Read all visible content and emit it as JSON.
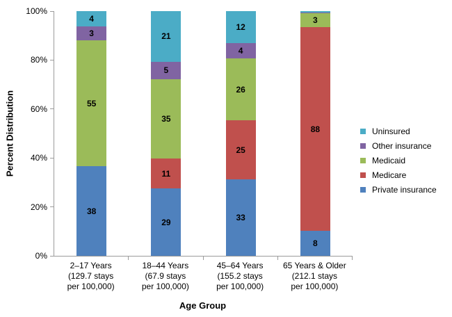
{
  "colors": {
    "private_insurance": "#4F81BD",
    "medicare": "#C0504D",
    "medicaid": "#9BBB59",
    "other_insurance": "#8064A2",
    "uninsured": "#4BACC6",
    "axis": "#9b9b9b",
    "text": "#000000"
  },
  "y_axis": {
    "title": "Percent Distribution",
    "ticks": [
      "0%",
      "20%",
      "40%",
      "60%",
      "80%",
      "100%"
    ]
  },
  "x_axis": {
    "title": "Age Group"
  },
  "legend": [
    {
      "label": "Uninsured",
      "color": "#4BACC6"
    },
    {
      "label": "Other insurance",
      "color": "#8064A2"
    },
    {
      "label": "Medicaid",
      "color": "#9BBB59"
    },
    {
      "label": "Medicare",
      "color": "#C0504D"
    },
    {
      "label": "Private insurance",
      "color": "#4F81BD"
    }
  ],
  "chart_data": {
    "type": "bar",
    "stacked": true,
    "percent_stacked": true,
    "grid": false,
    "legend_position": "right",
    "ylim": [
      0,
      100
    ],
    "ytick_step": 20,
    "label_min_value": 2,
    "categories": [
      [
        "2–17 Years",
        "(129.7 stays",
        "per 100,000)"
      ],
      [
        "18–44 Years",
        "(67.9 stays",
        "per 100,000)"
      ],
      [
        "45–64 Years",
        "(155.2 stays",
        "per 100,000)"
      ],
      [
        "65 Years & Older",
        "(212.1 stays",
        "per 100,000)"
      ]
    ],
    "series": [
      {
        "name": "Private insurance",
        "color": "#4F81BD",
        "values": [
          38,
          29,
          33,
          8
        ]
      },
      {
        "name": "Medicare",
        "color": "#C0504D",
        "values": [
          0,
          11,
          25,
          88
        ]
      },
      {
        "name": "Medicaid",
        "color": "#9BBB59",
        "values": [
          55,
          35,
          26,
          3
        ]
      },
      {
        "name": "Other insurance",
        "color": "#8064A2",
        "values": [
          3,
          5,
          4,
          0.5
        ]
      },
      {
        "name": "Uninsured",
        "color": "#4BACC6",
        "values": [
          4,
          21,
          12,
          0.5
        ]
      }
    ]
  }
}
